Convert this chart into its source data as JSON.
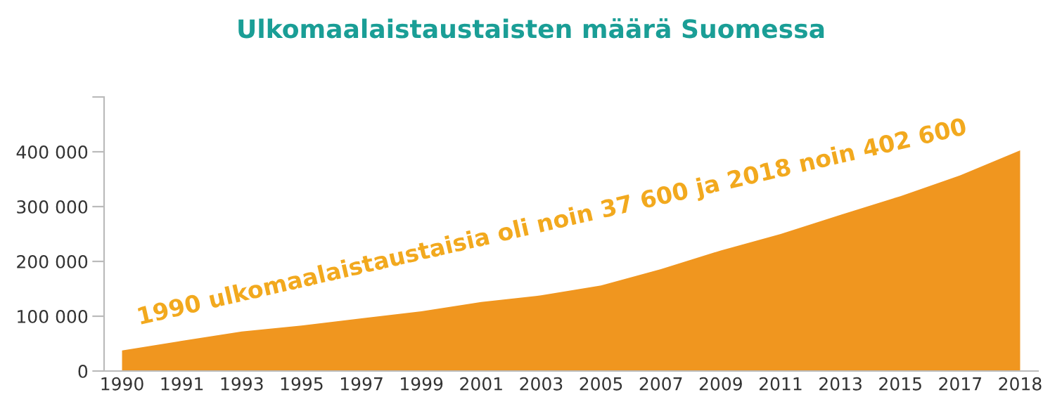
{
  "chart_data": {
    "type": "area",
    "title": "Ulkomaalaistaustaisten määrä Suomessa",
    "categories": [
      "1990",
      "1991",
      "1993",
      "1995",
      "1997",
      "1999",
      "2001",
      "2003",
      "2005",
      "2007",
      "2009",
      "2011",
      "2013",
      "2015",
      "2017",
      "2018"
    ],
    "series": [
      {
        "color": "#f0961f",
        "values": [
          37600,
          55000,
          72000,
          83000,
          96000,
          109000,
          126000,
          138000,
          156000,
          186000,
          220000,
          250000,
          285000,
          319000,
          357000,
          402600
        ]
      }
    ],
    "ylim": [
      0,
      500000
    ],
    "yticks": [
      0,
      {
        "value": 100000,
        "label": "100 000"
      },
      {
        "value": 200000,
        "label": "200 000"
      },
      {
        "value": 300000,
        "label": "300 000"
      },
      {
        "value": 400000,
        "label": "400 000"
      },
      {
        "value": 500000,
        "label": null
      }
    ],
    "annotations": [
      "1990 ulkomaalaistaustaisia oli noin 37 600 ja 2018 noin 402 600"
    ],
    "grid": false,
    "legend": false
  }
}
